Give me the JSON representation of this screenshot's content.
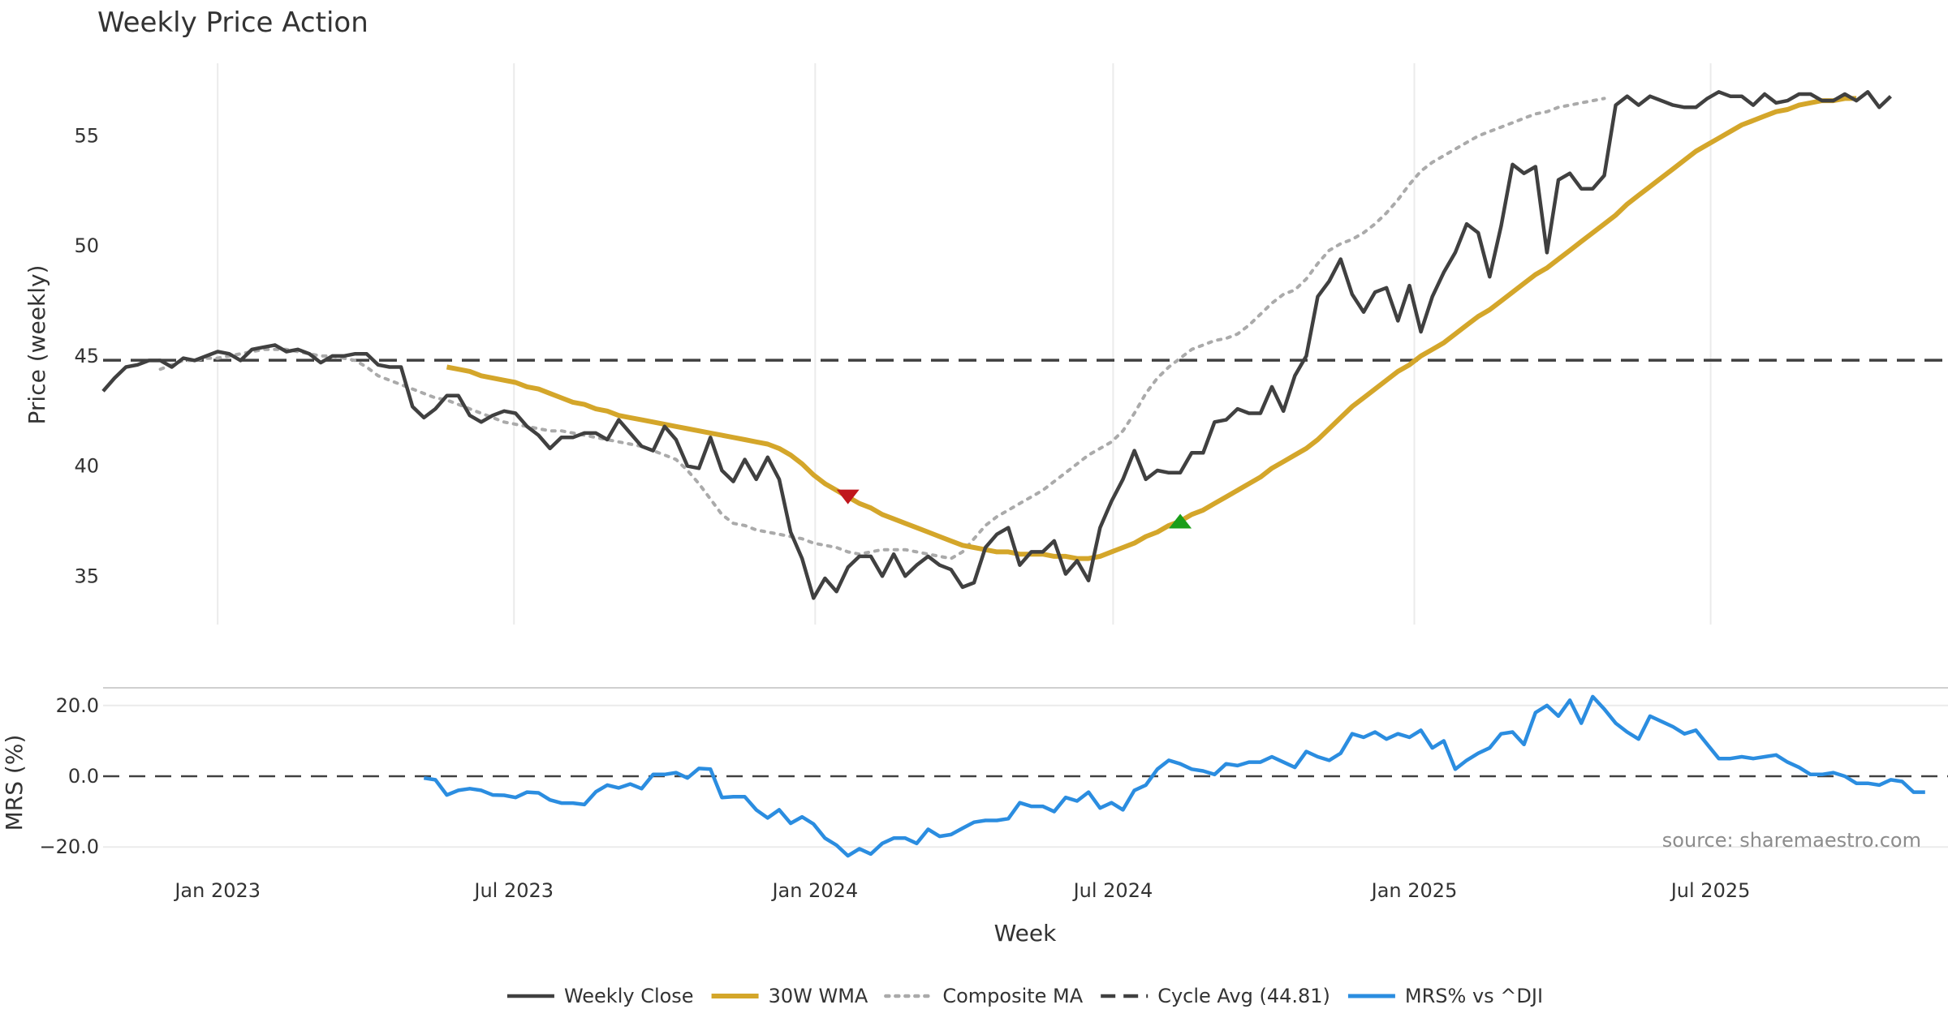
{
  "chart_data": [
    {
      "type": "line",
      "title": "Weekly Price Action",
      "ylabel": "Price (weekly)",
      "xlabel": "Week",
      "xlim": [
        "2022-10-23",
        "2025-11-23"
      ],
      "ylim": [
        32.8,
        58.3
      ],
      "yticks": [
        35,
        40,
        45,
        50,
        55
      ],
      "xticks": [
        {
          "date": "2023-01-01",
          "label": "Jan 2023"
        },
        {
          "date": "2023-07-01",
          "label": "Jul 2023"
        },
        {
          "date": "2024-01-01",
          "label": "Jan 2024"
        },
        {
          "date": "2024-07-01",
          "label": "Jul 2024"
        },
        {
          "date": "2025-01-01",
          "label": "Jan 2025"
        },
        {
          "date": "2025-07-01",
          "label": "Jul 2025"
        }
      ],
      "grid": true,
      "legend": "bottom",
      "series": [
        {
          "name": "Weekly Close",
          "color": "#404040",
          "style": "solid",
          "start": "2022-10-23",
          "step_days": 7,
          "values": [
            43.4,
            44.0,
            44.5,
            44.6,
            44.8,
            44.8,
            44.5,
            44.9,
            44.8,
            45.0,
            45.2,
            45.1,
            44.8,
            45.3,
            45.4,
            45.5,
            45.2,
            45.3,
            45.1,
            44.7,
            45.0,
            45.0,
            45.1,
            45.1,
            44.6,
            44.5,
            44.5,
            42.7,
            42.2,
            42.6,
            43.2,
            43.2,
            42.3,
            42.0,
            42.3,
            42.5,
            42.4,
            41.8,
            41.4,
            40.8,
            41.3,
            41.3,
            41.5,
            41.5,
            41.2,
            42.1,
            41.5,
            40.9,
            40.7,
            41.8,
            41.2,
            40.0,
            39.9,
            41.3,
            39.8,
            39.3,
            40.3,
            39.4,
            40.4,
            39.4,
            37.0,
            35.8,
            34.0,
            34.9,
            34.3,
            35.4,
            35.9,
            35.9,
            35.0,
            36.0,
            35.0,
            35.5,
            35.9,
            35.5,
            35.3,
            34.5,
            34.7,
            36.3,
            36.9,
            37.2,
            35.5,
            36.1,
            36.1,
            36.6,
            35.1,
            35.7,
            34.8,
            37.2,
            38.4,
            39.4,
            40.7,
            39.4,
            39.8,
            39.7,
            39.7,
            40.6,
            40.6,
            42.0,
            42.1,
            42.6,
            42.4,
            42.4,
            43.6,
            42.5,
            44.1,
            45.0,
            47.7,
            48.4,
            49.4,
            47.8,
            47.0,
            47.9,
            48.1,
            46.6,
            48.2,
            46.1,
            47.7,
            48.8,
            49.7,
            51.0,
            50.6,
            48.6,
            50.9,
            53.7,
            53.3,
            53.6,
            49.7,
            53.0,
            53.3,
            52.6,
            52.6,
            53.2,
            56.4,
            56.8,
            56.4,
            56.8,
            56.6,
            56.4,
            56.3,
            56.3,
            56.7,
            57.0,
            56.8,
            56.8,
            56.4,
            56.9,
            56.5,
            56.6,
            56.9,
            56.9,
            56.6,
            56.6,
            56.9,
            56.6,
            57.0,
            56.3,
            56.8
          ]
        },
        {
          "name": "30W WMA",
          "color": "#d4a62a",
          "style": "solid",
          "start": "2023-05-21",
          "step_days": 7,
          "values": [
            44.5,
            44.4,
            44.3,
            44.1,
            44.0,
            43.9,
            43.8,
            43.6,
            43.5,
            43.3,
            43.1,
            42.9,
            42.8,
            42.6,
            42.5,
            42.3,
            42.2,
            42.1,
            42.0,
            41.9,
            41.8,
            41.7,
            41.6,
            41.5,
            41.4,
            41.3,
            41.2,
            41.1,
            41.0,
            40.8,
            40.5,
            40.1,
            39.6,
            39.2,
            38.9,
            38.6,
            38.3,
            38.1,
            37.8,
            37.6,
            37.4,
            37.2,
            37.0,
            36.8,
            36.6,
            36.4,
            36.3,
            36.2,
            36.1,
            36.1,
            36.0,
            36.0,
            36.0,
            35.9,
            35.9,
            35.8,
            35.8,
            35.9,
            36.1,
            36.3,
            36.5,
            36.8,
            37.0,
            37.3,
            37.5,
            37.8,
            38.0,
            38.3,
            38.6,
            38.9,
            39.2,
            39.5,
            39.9,
            40.2,
            40.5,
            40.8,
            41.2,
            41.7,
            42.2,
            42.7,
            43.1,
            43.5,
            43.9,
            44.3,
            44.6,
            45.0,
            45.3,
            45.6,
            46.0,
            46.4,
            46.8,
            47.1,
            47.5,
            47.9,
            48.3,
            48.7,
            49.0,
            49.4,
            49.8,
            50.2,
            50.6,
            51.0,
            51.4,
            51.9,
            52.3,
            52.7,
            53.1,
            53.5,
            53.9,
            54.3,
            54.6,
            54.9,
            55.2,
            55.5,
            55.7,
            55.9,
            56.1,
            56.2,
            56.4,
            56.5,
            56.6,
            56.6,
            56.7,
            56.7
          ]
        },
        {
          "name": "Composite MA",
          "color": "#aaaaaa",
          "style": "dotted",
          "start": "2022-11-27",
          "step_days": 7,
          "values": [
            44.4,
            44.6,
            44.8,
            44.8,
            44.9,
            44.9,
            45.0,
            45.1,
            45.2,
            45.3,
            45.3,
            45.3,
            45.2,
            45.1,
            45.0,
            45.0,
            44.9,
            44.8,
            44.5,
            44.1,
            43.9,
            43.7,
            43.5,
            43.3,
            43.1,
            43.0,
            42.8,
            42.6,
            42.4,
            42.2,
            42.0,
            41.9,
            41.8,
            41.7,
            41.6,
            41.6,
            41.5,
            41.4,
            41.3,
            41.2,
            41.1,
            41.0,
            40.9,
            40.7,
            40.5,
            40.3,
            39.8,
            39.2,
            38.5,
            37.8,
            37.4,
            37.3,
            37.1,
            37.0,
            36.9,
            36.8,
            36.7,
            36.5,
            36.4,
            36.3,
            36.1,
            36.0,
            36.1,
            36.2,
            36.2,
            36.2,
            36.1,
            36.0,
            35.9,
            35.8,
            36.1,
            36.7,
            37.3,
            37.7,
            38.0,
            38.3,
            38.6,
            38.9,
            39.3,
            39.7,
            40.1,
            40.5,
            40.8,
            41.1,
            41.6,
            42.4,
            43.3,
            44.0,
            44.5,
            44.9,
            45.3,
            45.5,
            45.7,
            45.8,
            46.0,
            46.4,
            46.9,
            47.4,
            47.8,
            48.0,
            48.5,
            49.2,
            49.8,
            50.1,
            50.3,
            50.6,
            51.0,
            51.5,
            52.1,
            52.8,
            53.4,
            53.8,
            54.1,
            54.4,
            54.7,
            55.0,
            55.2,
            55.4,
            55.6,
            55.8,
            56.0,
            56.1,
            56.3,
            56.4,
            56.5,
            56.6,
            56.7
          ]
        },
        {
          "name": "Cycle Avg (44.81)",
          "color": "#404040",
          "style": "dashed",
          "constant": 44.81
        }
      ],
      "markers": [
        {
          "type": "down-triangle",
          "date": "2024-01-21",
          "value": 38.6,
          "color": "#c0161c"
        },
        {
          "type": "up-triangle",
          "date": "2024-08-11",
          "value": 37.5,
          "color": "#1a9e1a"
        }
      ]
    },
    {
      "type": "line",
      "ylabel": "MRS (%)",
      "xlim": [
        "2022-10-23",
        "2025-11-23"
      ],
      "ylim": [
        -25,
        25
      ],
      "yticks": [
        {
          "value": 20,
          "label": "20.0"
        },
        {
          "value": 0,
          "label": "0.0"
        },
        {
          "value": -20,
          "label": "−20.0"
        }
      ],
      "zero_line": "dashed",
      "annotation": "source: sharemaestro.com",
      "series": [
        {
          "name": "MRS% vs ^DJI",
          "color": "#2b8de0",
          "style": "solid",
          "start": "2023-05-07",
          "step_days": 7,
          "values": [
            -0.5,
            -1.0,
            -5.3,
            -4.0,
            -3.5,
            -4.0,
            -5.3,
            -5.4,
            -6.0,
            -4.5,
            -4.7,
            -6.7,
            -7.6,
            -7.6,
            -8.0,
            -4.4,
            -2.5,
            -3.3,
            -2.2,
            -3.5,
            0.5,
            0.5,
            1.0,
            -0.5,
            2.2,
            2.0,
            -6.0,
            -5.8,
            -5.8,
            -9.5,
            -11.8,
            -9.5,
            -13.3,
            -11.5,
            -13.5,
            -17.5,
            -19.5,
            -22.5,
            -20.5,
            -22.0,
            -19.0,
            -17.5,
            -17.5,
            -19.0,
            -15.0,
            -17.0,
            -16.5,
            -14.7,
            -13.0,
            -12.5,
            -12.5,
            -12.0,
            -7.5,
            -8.5,
            -8.5,
            -10.0,
            -6.0,
            -7.0,
            -4.5,
            -9.0,
            -7.5,
            -9.5,
            -4.0,
            -2.5,
            2.0,
            4.5,
            3.5,
            2.0,
            1.5,
            0.5,
            3.5,
            3.0,
            4.0,
            4.0,
            5.5,
            4.0,
            2.5,
            7.0,
            5.5,
            4.5,
            6.5,
            12.0,
            11.0,
            12.5,
            10.5,
            12.0,
            11.0,
            13.0,
            8.0,
            10.0,
            2.0,
            4.5,
            6.5,
            8.0,
            12.0,
            12.5,
            9.0,
            18.0,
            20.0,
            17.0,
            21.5,
            15.0,
            22.5,
            19.0,
            15.0,
            12.5,
            10.5,
            17.0,
            15.5,
            14.0,
            12.0,
            13.0,
            9.0,
            5.0,
            5.0,
            5.5,
            5.0,
            5.5,
            6.0,
            4.0,
            2.5,
            0.5,
            0.5,
            1.0,
            0.0,
            -2.0,
            -2.0,
            -2.5,
            -1.0,
            -1.5,
            -4.5,
            -4.5
          ]
        }
      ]
    }
  ]
}
